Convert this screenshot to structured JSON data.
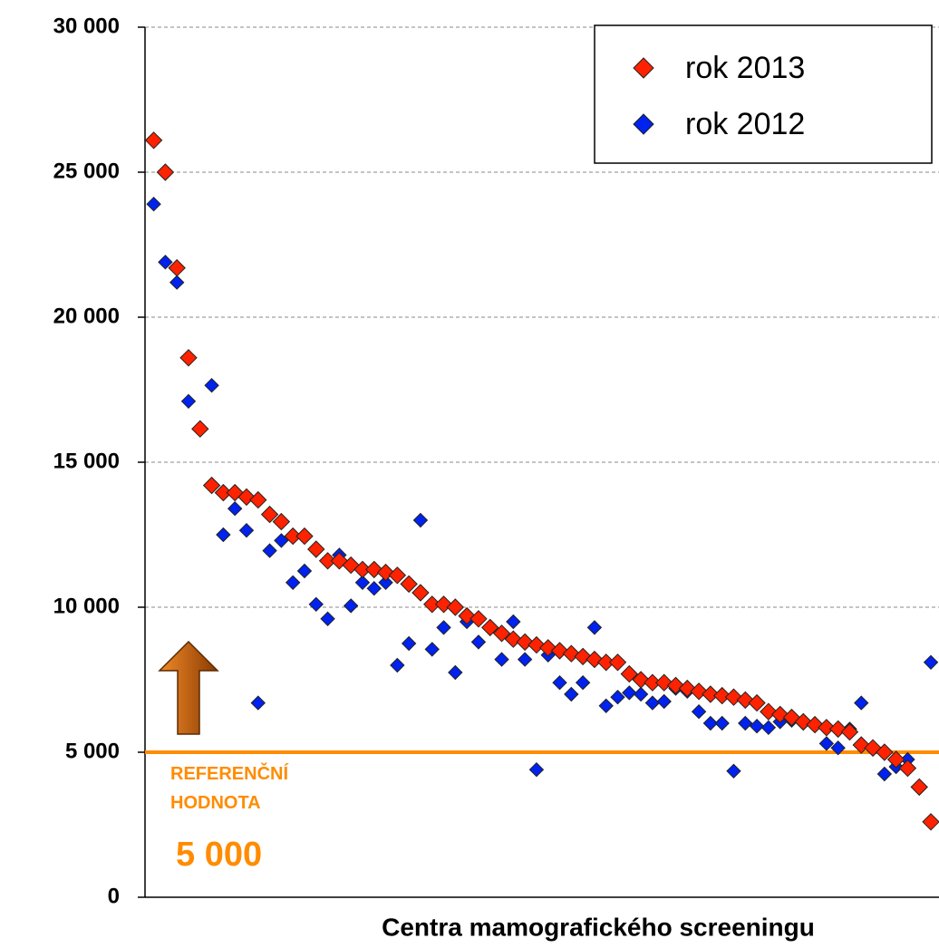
{
  "chart_data": {
    "type": "scatter",
    "x_label": "Centra mamografického screeningu",
    "x": [
      1,
      2,
      3,
      4,
      5,
      6,
      7,
      8,
      9,
      10,
      11,
      12,
      13,
      14,
      15,
      16,
      17,
      18,
      19,
      20,
      21,
      22,
      23,
      24,
      25,
      26,
      27,
      28,
      29,
      30,
      31,
      32,
      33,
      34,
      35,
      36,
      37,
      38,
      39,
      40,
      41,
      42,
      43,
      44,
      45,
      46,
      47,
      48,
      49,
      50,
      51,
      52,
      53,
      54,
      55,
      56,
      57,
      58,
      59,
      60,
      61,
      62,
      63,
      64,
      65,
      66,
      67,
      68
    ],
    "xlim": [
      0.25,
      68.7
    ],
    "ylim": [
      0,
      30000
    ],
    "yticks": [
      {
        "value": 0,
        "label": "0"
      },
      {
        "value": 5000,
        "label": "5 000"
      },
      {
        "value": 10000,
        "label": "10 000"
      },
      {
        "value": 15000,
        "label": "15 000"
      },
      {
        "value": 20000,
        "label": "20 000"
      },
      {
        "value": 25000,
        "label": "25 000"
      },
      {
        "value": 30000,
        "label": "30 000"
      }
    ],
    "grid": true,
    "legend": "top-right",
    "series": [
      {
        "name": "rok 2013",
        "color": "#ff2200",
        "values": [
          26100,
          25000,
          21700,
          18600,
          16150,
          14200,
          13950,
          13950,
          13800,
          13700,
          13200,
          12950,
          12450,
          12450,
          12000,
          11600,
          11600,
          11450,
          11300,
          11300,
          11200,
          11100,
          10800,
          10500,
          10100,
          10100,
          10000,
          9700,
          9600,
          9300,
          9100,
          8900,
          8800,
          8700,
          8600,
          8500,
          8400,
          8300,
          8200,
          8100,
          8100,
          7700,
          7500,
          7400,
          7400,
          7300,
          7200,
          7100,
          7000,
          6950,
          6900,
          6800,
          6700,
          6400,
          6300,
          6200,
          6050,
          5950,
          5850,
          5800,
          5700,
          5250,
          5150,
          5000,
          4750,
          4450,
          3800,
          2600
        ]
      },
      {
        "name": "rok 2012",
        "color": "#0022ee",
        "values": [
          23900,
          21900,
          21200,
          17100,
          null,
          17650,
          12500,
          13400,
          12650,
          6700,
          11950,
          12300,
          10850,
          11250,
          10100,
          9600,
          11800,
          10050,
          10850,
          10650,
          10850,
          8000,
          8750,
          13000,
          8550,
          9300,
          7750,
          9500,
          8800,
          9300,
          8200,
          9500,
          8200,
          4400,
          8350,
          7400,
          7000,
          7400,
          9300,
          6600,
          6900,
          7050,
          7000,
          6700,
          6750,
          7200,
          7100,
          6400,
          6000,
          6000,
          4350,
          6000,
          5900,
          5850,
          6050,
          6100,
          6000,
          5950,
          5300,
          5150,
          5800,
          6700,
          5100,
          4250,
          4500,
          4750,
          null,
          8100
        ]
      }
    ],
    "reference_line": {
      "value": 5000,
      "color": "#ff8c00",
      "label": "REFERENČNÍ HODNOTA",
      "value_label": "5 000"
    }
  }
}
